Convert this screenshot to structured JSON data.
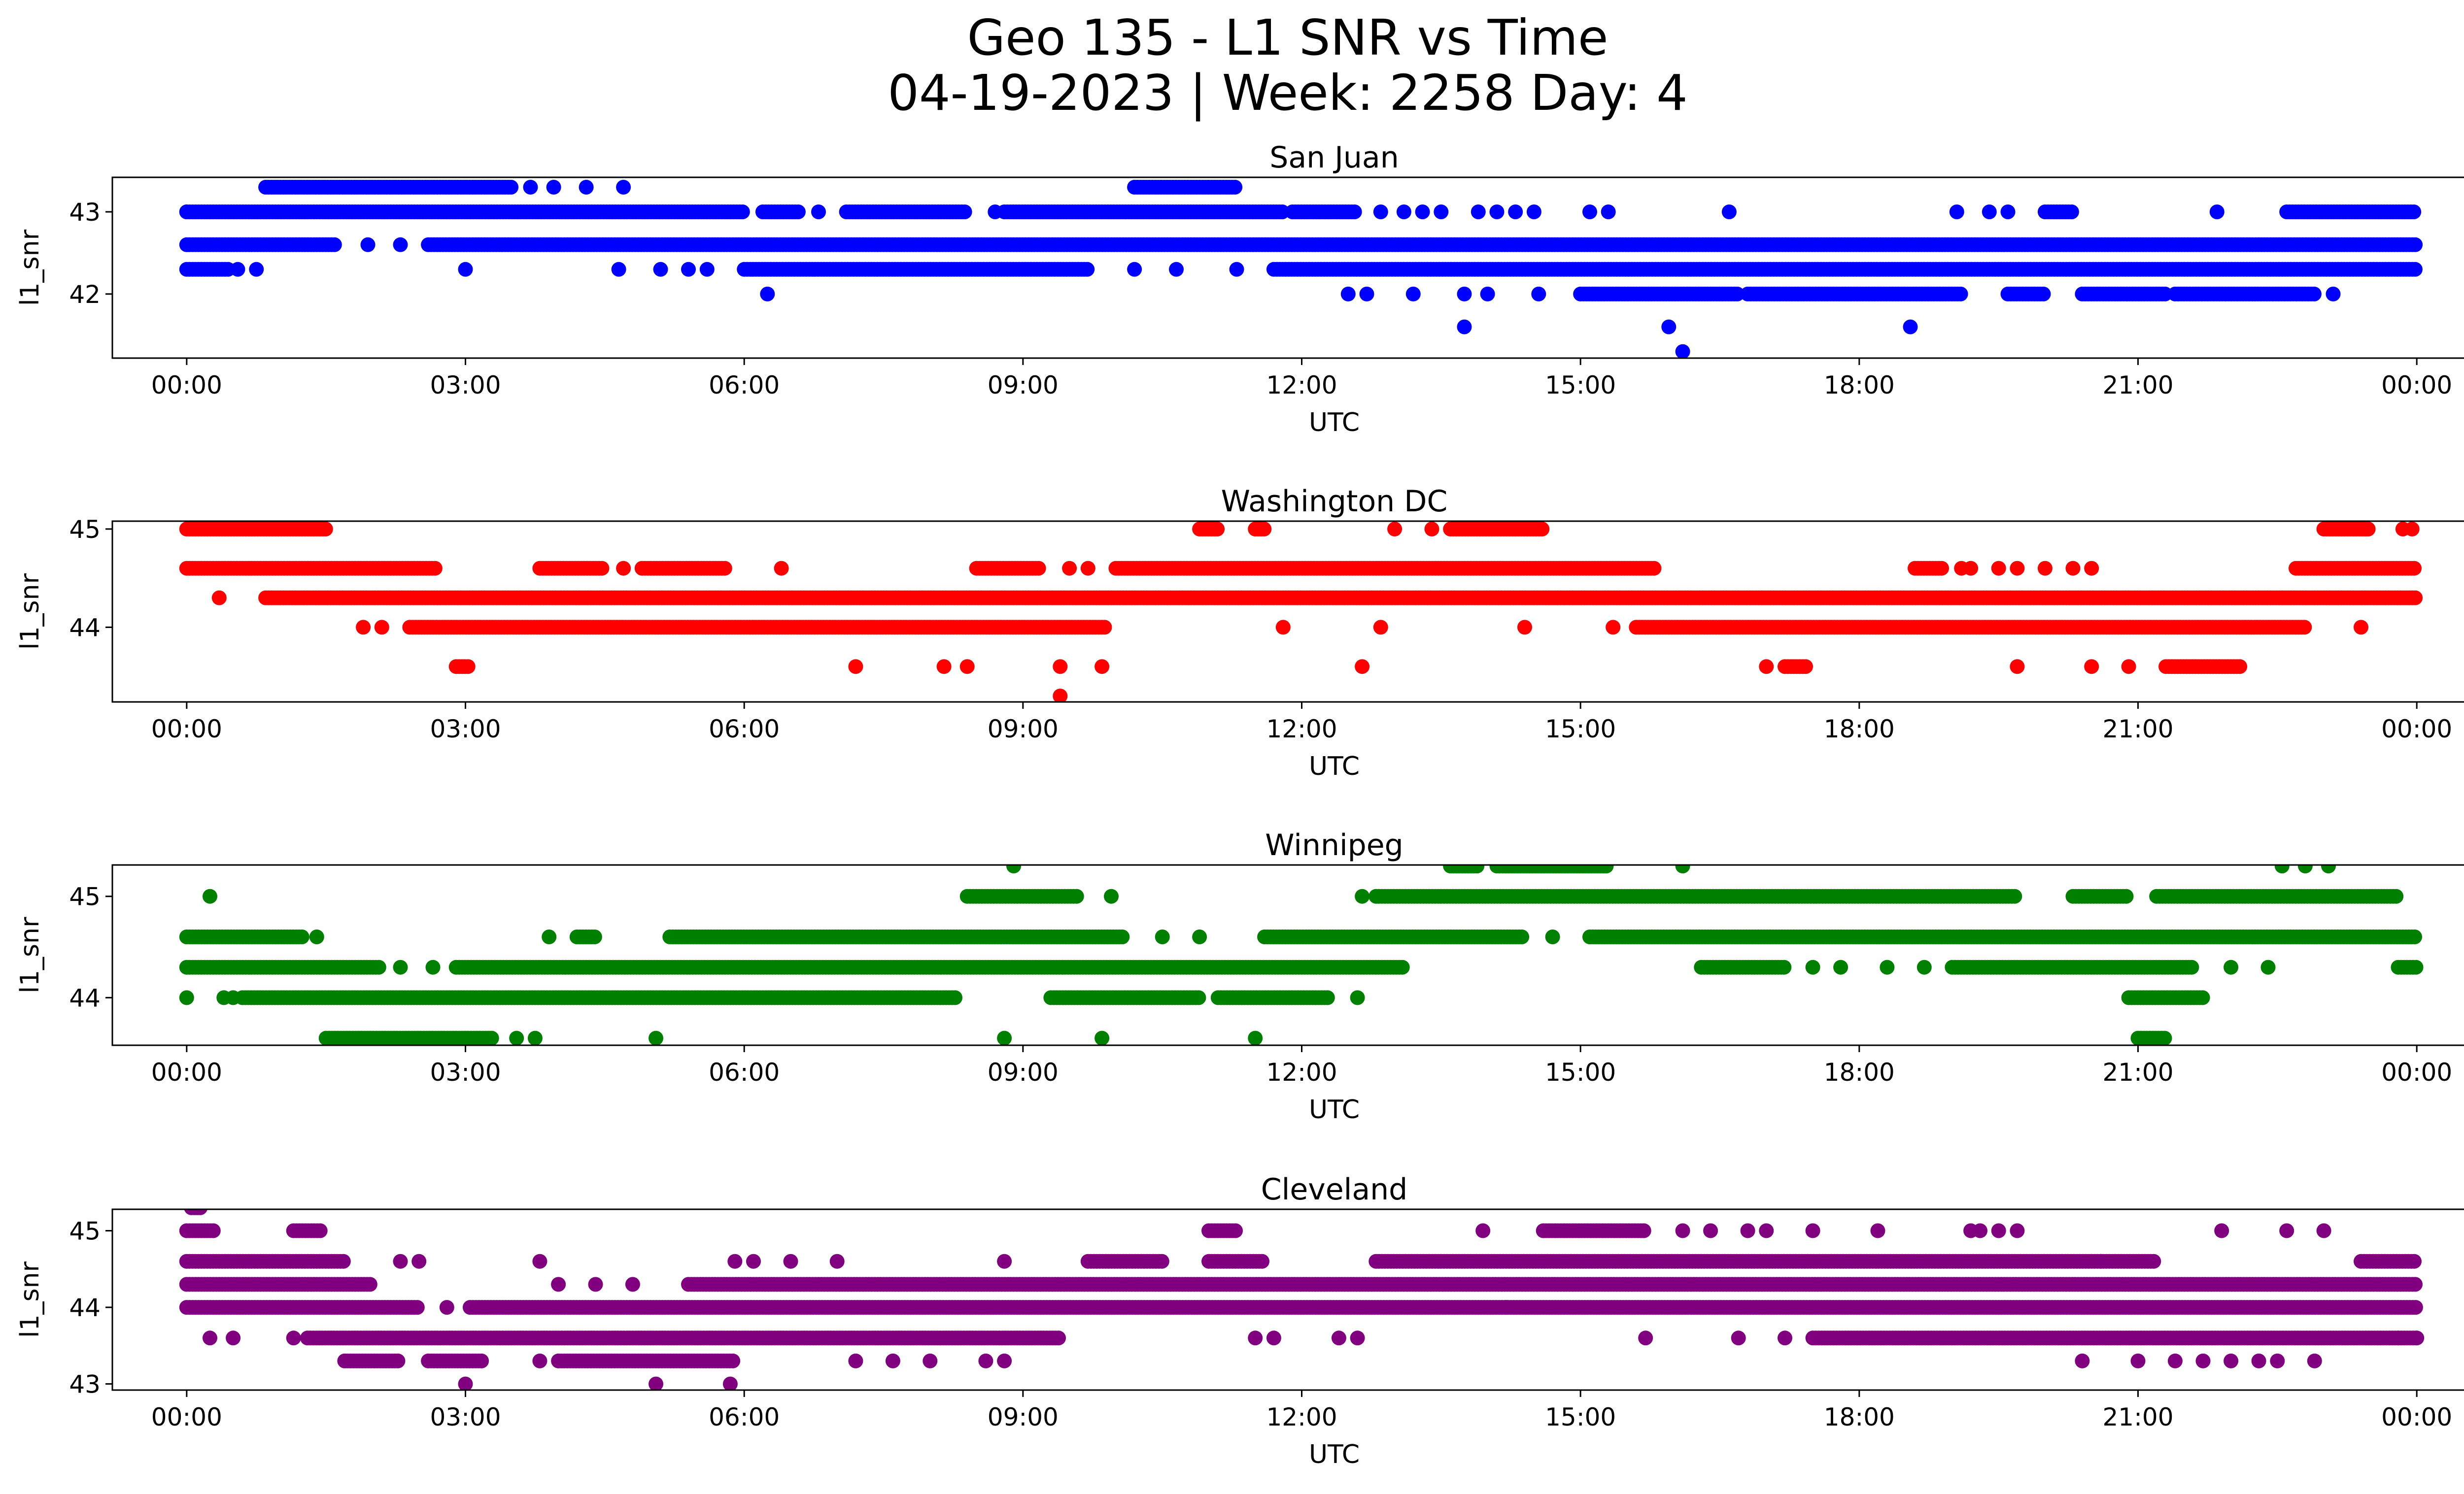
{
  "figure": {
    "title_line1": "Geo 135 - L1 SNR vs Time",
    "title_line2": "04-19-2023 | Week: 2258 Day: 4"
  },
  "chart_data": [
    {
      "type": "scatter",
      "title": "San Juan",
      "xlabel": "UTC",
      "ylabel": "l1_snr",
      "color": "#0000ff",
      "xlim": [
        -0.8,
        25.5
      ],
      "ylim": [
        41.22,
        43.42
      ],
      "xticks": [
        "00:00",
        "03:00",
        "06:00",
        "09:00",
        "12:00",
        "15:00",
        "18:00",
        "21:00",
        "00:00"
      ],
      "yticks": [
        42,
        43
      ],
      "grid": false,
      "bands": [
        {
          "y": 43.3,
          "segments": [
            [
              0.85,
              3.5
            ],
            [
              10.2,
              11.3
            ]
          ]
        },
        {
          "y": 43.0,
          "segments": [
            [
              0.0,
              6.0
            ],
            [
              6.2,
              6.6
            ],
            [
              7.1,
              8.4
            ],
            [
              8.8,
              11.8
            ],
            [
              11.9,
              12.6
            ],
            [
              20.0,
              20.3
            ],
            [
              22.6,
              24.0
            ]
          ]
        },
        {
          "y": 42.6,
          "segments": [
            [
              0.0,
              1.6
            ],
            [
              2.6,
              24.0
            ]
          ]
        },
        {
          "y": 42.3,
          "segments": [
            [
              0.0,
              0.45
            ],
            [
              6.0,
              9.7
            ],
            [
              11.7,
              24.0
            ]
          ]
        },
        {
          "y": 42.0,
          "segments": [
            [
              15.0,
              16.7
            ],
            [
              16.8,
              19.1
            ],
            [
              19.6,
              20.0
            ],
            [
              20.4,
              21.3
            ],
            [
              21.4,
              22.9
            ]
          ]
        }
      ],
      "points": [
        {
          "x": 0.0,
          "y": 43.0
        },
        {
          "x": 0.55,
          "y": 42.3
        },
        {
          "x": 0.75,
          "y": 42.3
        },
        {
          "x": 1.95,
          "y": 42.6
        },
        {
          "x": 2.3,
          "y": 42.6
        },
        {
          "x": 3.0,
          "y": 42.3
        },
        {
          "x": 3.7,
          "y": 43.3
        },
        {
          "x": 3.95,
          "y": 43.3
        },
        {
          "x": 4.3,
          "y": 43.3
        },
        {
          "x": 4.7,
          "y": 43.3
        },
        {
          "x": 4.65,
          "y": 42.3
        },
        {
          "x": 5.1,
          "y": 42.3
        },
        {
          "x": 5.4,
          "y": 42.3
        },
        {
          "x": 5.6,
          "y": 42.3
        },
        {
          "x": 6.25,
          "y": 42.0
        },
        {
          "x": 6.8,
          "y": 43.0
        },
        {
          "x": 8.7,
          "y": 43.0
        },
        {
          "x": 10.2,
          "y": 42.3
        },
        {
          "x": 10.65,
          "y": 42.3
        },
        {
          "x": 11.3,
          "y": 42.3
        },
        {
          "x": 12.5,
          "y": 42.0
        },
        {
          "x": 12.7,
          "y": 42.0
        },
        {
          "x": 12.85,
          "y": 43.0
        },
        {
          "x": 13.1,
          "y": 43.0
        },
        {
          "x": 13.3,
          "y": 43.0
        },
        {
          "x": 13.5,
          "y": 43.0
        },
        {
          "x": 13.2,
          "y": 42.0
        },
        {
          "x": 13.75,
          "y": 42.0
        },
        {
          "x": 14.0,
          "y": 42.0
        },
        {
          "x": 14.55,
          "y": 42.0
        },
        {
          "x": 13.9,
          "y": 43.0
        },
        {
          "x": 14.1,
          "y": 43.0
        },
        {
          "x": 14.3,
          "y": 43.0
        },
        {
          "x": 14.5,
          "y": 43.0
        },
        {
          "x": 15.1,
          "y": 43.0
        },
        {
          "x": 15.3,
          "y": 43.0
        },
        {
          "x": 16.6,
          "y": 43.0
        },
        {
          "x": 19.05,
          "y": 43.0
        },
        {
          "x": 19.4,
          "y": 43.0
        },
        {
          "x": 19.6,
          "y": 43.0
        },
        {
          "x": 21.85,
          "y": 43.0
        },
        {
          "x": 13.75,
          "y": 41.6
        },
        {
          "x": 15.95,
          "y": 41.6
        },
        {
          "x": 18.55,
          "y": 41.6
        },
        {
          "x": 16.1,
          "y": 41.3
        },
        {
          "x": 23.1,
          "y": 42.0
        }
      ]
    },
    {
      "type": "scatter",
      "title": "Washington DC",
      "xlabel": "UTC",
      "ylabel": "l1_snr",
      "color": "#ff0000",
      "xlim": [
        -0.8,
        25.5
      ],
      "ylim": [
        43.24,
        45.08
      ],
      "xticks": [
        "00:00",
        "03:00",
        "06:00",
        "09:00",
        "12:00",
        "15:00",
        "18:00",
        "21:00",
        "00:00"
      ],
      "yticks": [
        44,
        45
      ],
      "grid": false,
      "bands": [
        {
          "y": 45.0,
          "segments": [
            [
              0.0,
              1.5
            ],
            [
              10.9,
              11.1
            ],
            [
              11.5,
              11.6
            ],
            [
              13.6,
              14.6
            ],
            [
              23.0,
              23.5
            ]
          ]
        },
        {
          "y": 44.6,
          "segments": [
            [
              0.0,
              2.7
            ],
            [
              3.8,
              4.5
            ],
            [
              4.9,
              5.8
            ],
            [
              8.5,
              9.2
            ],
            [
              10.0,
              15.8
            ],
            [
              18.6,
              18.9
            ],
            [
              22.7,
              24.0
            ]
          ]
        },
        {
          "y": 44.3,
          "segments": [
            [
              0.85,
              24.0
            ]
          ]
        },
        {
          "y": 44.0,
          "segments": [
            [
              2.4,
              9.9
            ],
            [
              15.6,
              22.8
            ]
          ]
        },
        {
          "y": 43.6,
          "segments": [
            [
              2.9,
              3.05
            ],
            [
              17.2,
              17.45
            ],
            [
              21.3,
              22.1
            ]
          ]
        }
      ],
      "points": [
        {
          "x": 0.35,
          "y": 44.3
        },
        {
          "x": 1.9,
          "y": 44.0
        },
        {
          "x": 2.1,
          "y": 44.0
        },
        {
          "x": 4.7,
          "y": 44.6
        },
        {
          "x": 6.4,
          "y": 44.6
        },
        {
          "x": 9.5,
          "y": 44.6
        },
        {
          "x": 9.7,
          "y": 44.6
        },
        {
          "x": 7.2,
          "y": 43.6
        },
        {
          "x": 8.15,
          "y": 43.6
        },
        {
          "x": 8.4,
          "y": 43.6
        },
        {
          "x": 9.4,
          "y": 43.6
        },
        {
          "x": 9.85,
          "y": 43.6
        },
        {
          "x": 9.4,
          "y": 43.3
        },
        {
          "x": 11.8,
          "y": 44.0
        },
        {
          "x": 12.85,
          "y": 44.0
        },
        {
          "x": 12.65,
          "y": 43.6
        },
        {
          "x": 13.0,
          "y": 45.0
        },
        {
          "x": 13.4,
          "y": 45.0
        },
        {
          "x": 14.4,
          "y": 44.0
        },
        {
          "x": 15.35,
          "y": 44.0
        },
        {
          "x": 17.0,
          "y": 43.6
        },
        {
          "x": 19.1,
          "y": 44.6
        },
        {
          "x": 19.2,
          "y": 44.6
        },
        {
          "x": 19.5,
          "y": 44.6
        },
        {
          "x": 19.7,
          "y": 44.6
        },
        {
          "x": 20.0,
          "y": 44.6
        },
        {
          "x": 20.3,
          "y": 44.6
        },
        {
          "x": 20.5,
          "y": 44.6
        },
        {
          "x": 19.7,
          "y": 43.6
        },
        {
          "x": 20.5,
          "y": 43.6
        },
        {
          "x": 20.9,
          "y": 43.6
        },
        {
          "x": 23.4,
          "y": 44.0
        },
        {
          "x": 23.85,
          "y": 45.0
        },
        {
          "x": 23.95,
          "y": 45.0
        }
      ]
    },
    {
      "type": "scatter",
      "title": "Winnipeg",
      "xlabel": "UTC",
      "ylabel": "l1_snr",
      "color": "#008000",
      "xlim": [
        -0.8,
        25.5
      ],
      "ylim": [
        43.53,
        45.31
      ],
      "xticks": [
        "00:00",
        "03:00",
        "06:00",
        "09:00",
        "12:00",
        "15:00",
        "18:00",
        "21:00",
        "00:00"
      ],
      "yticks": [
        44,
        45
      ],
      "grid": false,
      "bands": [
        {
          "y": 45.3,
          "segments": [
            [
              13.6,
              13.9
            ],
            [
              14.1,
              15.3
            ]
          ]
        },
        {
          "y": 45.0,
          "segments": [
            [
              8.4,
              9.6
            ],
            [
              12.8,
              19.7
            ],
            [
              20.3,
              20.9
            ],
            [
              21.2,
              23.8
            ]
          ]
        },
        {
          "y": 44.6,
          "segments": [
            [
              0.0,
              1.25
            ],
            [
              4.2,
              4.4
            ],
            [
              5.2,
              10.1
            ],
            [
              11.6,
              14.4
            ],
            [
              15.1,
              24.0
            ]
          ]
        },
        {
          "y": 44.3,
          "segments": [
            [
              0.0,
              2.1
            ],
            [
              2.9,
              13.1
            ],
            [
              16.3,
              17.2
            ],
            [
              19.0,
              21.6
            ],
            [
              23.8,
              24.0
            ]
          ]
        },
        {
          "y": 44.0,
          "segments": [
            [
              0.6,
              8.3
            ],
            [
              9.3,
              10.9
            ],
            [
              11.1,
              12.3
            ],
            [
              20.9,
              21.7
            ]
          ]
        },
        {
          "y": 43.6,
          "segments": [
            [
              1.5,
              3.3
            ],
            [
              21.0,
              21.3
            ]
          ]
        }
      ],
      "points": [
        {
          "x": 0.0,
          "y": 44.0
        },
        {
          "x": 0.25,
          "y": 45.0
        },
        {
          "x": 0.4,
          "y": 44.0
        },
        {
          "x": 0.5,
          "y": 44.0
        },
        {
          "x": 1.4,
          "y": 44.6
        },
        {
          "x": 2.3,
          "y": 44.3
        },
        {
          "x": 2.65,
          "y": 44.3
        },
        {
          "x": 3.55,
          "y": 43.6
        },
        {
          "x": 3.75,
          "y": 43.6
        },
        {
          "x": 3.9,
          "y": 44.6
        },
        {
          "x": 5.05,
          "y": 43.6
        },
        {
          "x": 8.9,
          "y": 45.3
        },
        {
          "x": 9.95,
          "y": 45.0
        },
        {
          "x": 8.8,
          "y": 43.6
        },
        {
          "x": 9.85,
          "y": 43.6
        },
        {
          "x": 11.5,
          "y": 43.6
        },
        {
          "x": 10.5,
          "y": 44.6
        },
        {
          "x": 10.9,
          "y": 44.6
        },
        {
          "x": 12.6,
          "y": 44.0
        },
        {
          "x": 12.65,
          "y": 45.0
        },
        {
          "x": 14.7,
          "y": 44.6
        },
        {
          "x": 16.1,
          "y": 45.3
        },
        {
          "x": 17.5,
          "y": 44.3
        },
        {
          "x": 17.8,
          "y": 44.3
        },
        {
          "x": 18.3,
          "y": 44.3
        },
        {
          "x": 18.7,
          "y": 44.3
        },
        {
          "x": 22.0,
          "y": 44.3
        },
        {
          "x": 22.4,
          "y": 44.3
        },
        {
          "x": 22.55,
          "y": 45.3
        },
        {
          "x": 22.8,
          "y": 45.3
        },
        {
          "x": 23.05,
          "y": 45.3
        }
      ]
    },
    {
      "type": "scatter",
      "title": "Cleveland",
      "xlabel": "UTC",
      "ylabel": "l1_snr",
      "color": "#800080",
      "xlim": [
        -0.8,
        25.5
      ],
      "ylim": [
        42.92,
        45.28
      ],
      "xticks": [
        "00:00",
        "03:00",
        "06:00",
        "09:00",
        "12:00",
        "15:00",
        "18:00",
        "21:00",
        "00:00"
      ],
      "yticks": [
        43,
        44,
        45
      ],
      "grid": false,
      "bands": [
        {
          "y": 45.3,
          "segments": [
            [
              0.05,
              0.15
            ]
          ]
        },
        {
          "y": 45.0,
          "segments": [
            [
              0.0,
              0.3
            ],
            [
              1.15,
              1.45
            ],
            [
              11.0,
              11.3
            ],
            [
              14.6,
              15.7
            ]
          ]
        },
        {
          "y": 44.6,
          "segments": [
            [
              0.0,
              1.7
            ],
            [
              9.7,
              10.5
            ],
            [
              11.0,
              11.6
            ],
            [
              12.8,
              21.2
            ],
            [
              23.4,
              24.0
            ]
          ]
        },
        {
          "y": 44.3,
          "segments": [
            [
              0.0,
              2.0
            ],
            [
              5.4,
              24.0
            ]
          ]
        },
        {
          "y": 44.0,
          "segments": [
            [
              0.0,
              2.5
            ],
            [
              3.05,
              24.0
            ]
          ]
        },
        {
          "y": 43.6,
          "segments": [
            [
              1.3,
              9.4
            ],
            [
              17.5,
              24.0
            ]
          ]
        },
        {
          "y": 43.3,
          "segments": [
            [
              1.7,
              2.3
            ],
            [
              2.6,
              3.2
            ],
            [
              4.0,
              5.9
            ]
          ]
        }
      ],
      "points": [
        {
          "x": 0.25,
          "y": 43.6
        },
        {
          "x": 0.5,
          "y": 43.6
        },
        {
          "x": 1.15,
          "y": 43.6
        },
        {
          "x": 2.3,
          "y": 44.6
        },
        {
          "x": 2.5,
          "y": 44.6
        },
        {
          "x": 2.8,
          "y": 44.0
        },
        {
          "x": 3.0,
          "y": 43.0
        },
        {
          "x": 3.8,
          "y": 44.6
        },
        {
          "x": 3.8,
          "y": 43.3
        },
        {
          "x": 4.0,
          "y": 44.3
        },
        {
          "x": 4.4,
          "y": 44.3
        },
        {
          "x": 4.8,
          "y": 44.3
        },
        {
          "x": 5.05,
          "y": 43.0
        },
        {
          "x": 5.85,
          "y": 43.0
        },
        {
          "x": 5.9,
          "y": 44.6
        },
        {
          "x": 6.1,
          "y": 44.6
        },
        {
          "x": 6.5,
          "y": 44.6
        },
        {
          "x": 7.0,
          "y": 44.6
        },
        {
          "x": 7.2,
          "y": 43.3
        },
        {
          "x": 7.6,
          "y": 43.3
        },
        {
          "x": 8.0,
          "y": 43.3
        },
        {
          "x": 8.6,
          "y": 43.3
        },
        {
          "x": 8.8,
          "y": 43.3
        },
        {
          "x": 8.8,
          "y": 44.6
        },
        {
          "x": 11.5,
          "y": 43.6
        },
        {
          "x": 11.7,
          "y": 43.6
        },
        {
          "x": 12.4,
          "y": 43.6
        },
        {
          "x": 12.6,
          "y": 43.6
        },
        {
          "x": 13.95,
          "y": 45.0
        },
        {
          "x": 14.2,
          "y": 44.0
        },
        {
          "x": 15.7,
          "y": 43.6
        },
        {
          "x": 16.1,
          "y": 45.0
        },
        {
          "x": 16.4,
          "y": 45.0
        },
        {
          "x": 16.8,
          "y": 45.0
        },
        {
          "x": 17.0,
          "y": 45.0
        },
        {
          "x": 17.5,
          "y": 45.0
        },
        {
          "x": 18.2,
          "y": 45.0
        },
        {
          "x": 16.7,
          "y": 43.6
        },
        {
          "x": 17.2,
          "y": 43.6
        },
        {
          "x": 19.2,
          "y": 45.0
        },
        {
          "x": 19.5,
          "y": 45.0
        },
        {
          "x": 19.3,
          "y": 45.0
        },
        {
          "x": 19.7,
          "y": 45.0
        },
        {
          "x": 20.4,
          "y": 43.3
        },
        {
          "x": 20.6,
          "y": 44.6
        },
        {
          "x": 21.0,
          "y": 43.3
        },
        {
          "x": 21.4,
          "y": 43.3
        },
        {
          "x": 21.7,
          "y": 43.3
        },
        {
          "x": 21.9,
          "y": 45.0
        },
        {
          "x": 22.0,
          "y": 43.3
        },
        {
          "x": 22.3,
          "y": 43.3
        },
        {
          "x": 22.5,
          "y": 43.3
        },
        {
          "x": 22.9,
          "y": 43.3
        },
        {
          "x": 22.6,
          "y": 45.0
        },
        {
          "x": 23.0,
          "y": 45.0
        },
        {
          "x": 23.8,
          "y": 43.6
        },
        {
          "x": 24.0,
          "y": 43.6
        }
      ]
    }
  ]
}
